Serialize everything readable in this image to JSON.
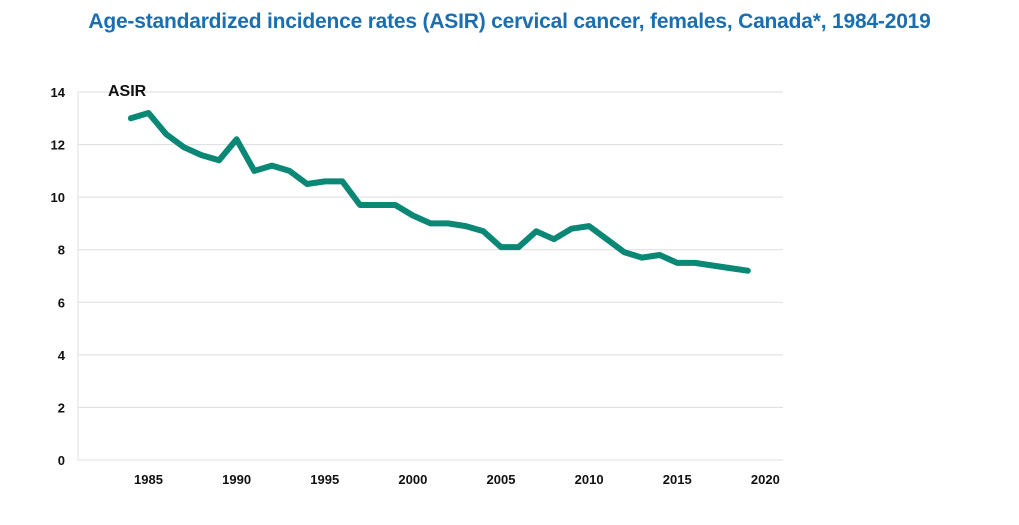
{
  "colors": {
    "title": "#1b6fb0",
    "line": "#0b8775",
    "grid": "#dddddd",
    "axis": "#e0e0e0"
  },
  "chart_data": {
    "type": "line",
    "title": "Age-standardized incidence rates (ASIR) cervical cancer, females, Canada*, 1984-2019",
    "xlabel": "",
    "ylabel": "ASIR",
    "xlim": [
      1981,
      2021
    ],
    "ylim": [
      0,
      14
    ],
    "yticks": [
      0,
      2,
      4,
      6,
      8,
      10,
      12,
      14
    ],
    "xticks": [
      1985,
      1990,
      1995,
      2000,
      2005,
      2010,
      2015,
      2020
    ],
    "grid": true,
    "legend": "none",
    "series": [
      {
        "x": [
          1984,
          1985,
          1986,
          1987,
          1988,
          1989,
          1990,
          1991,
          1992,
          1993,
          1994,
          1995,
          1996,
          1997,
          1998,
          1999,
          2000,
          2001,
          2002,
          2003,
          2004,
          2005,
          2006,
          2007,
          2008,
          2009,
          2010,
          2011,
          2012,
          2013,
          2014,
          2015,
          2016,
          2017,
          2018,
          2019
        ],
        "values": [
          13.0,
          13.2,
          12.4,
          11.9,
          11.6,
          11.4,
          12.2,
          11.0,
          11.2,
          11.0,
          10.5,
          10.6,
          10.6,
          9.7,
          9.7,
          9.7,
          9.3,
          9.0,
          9.0,
          8.9,
          8.7,
          8.1,
          8.1,
          8.7,
          8.4,
          8.8,
          8.9,
          8.4,
          7.9,
          7.7,
          7.8,
          7.5,
          7.5,
          7.4,
          7.3,
          7.2
        ]
      }
    ]
  }
}
